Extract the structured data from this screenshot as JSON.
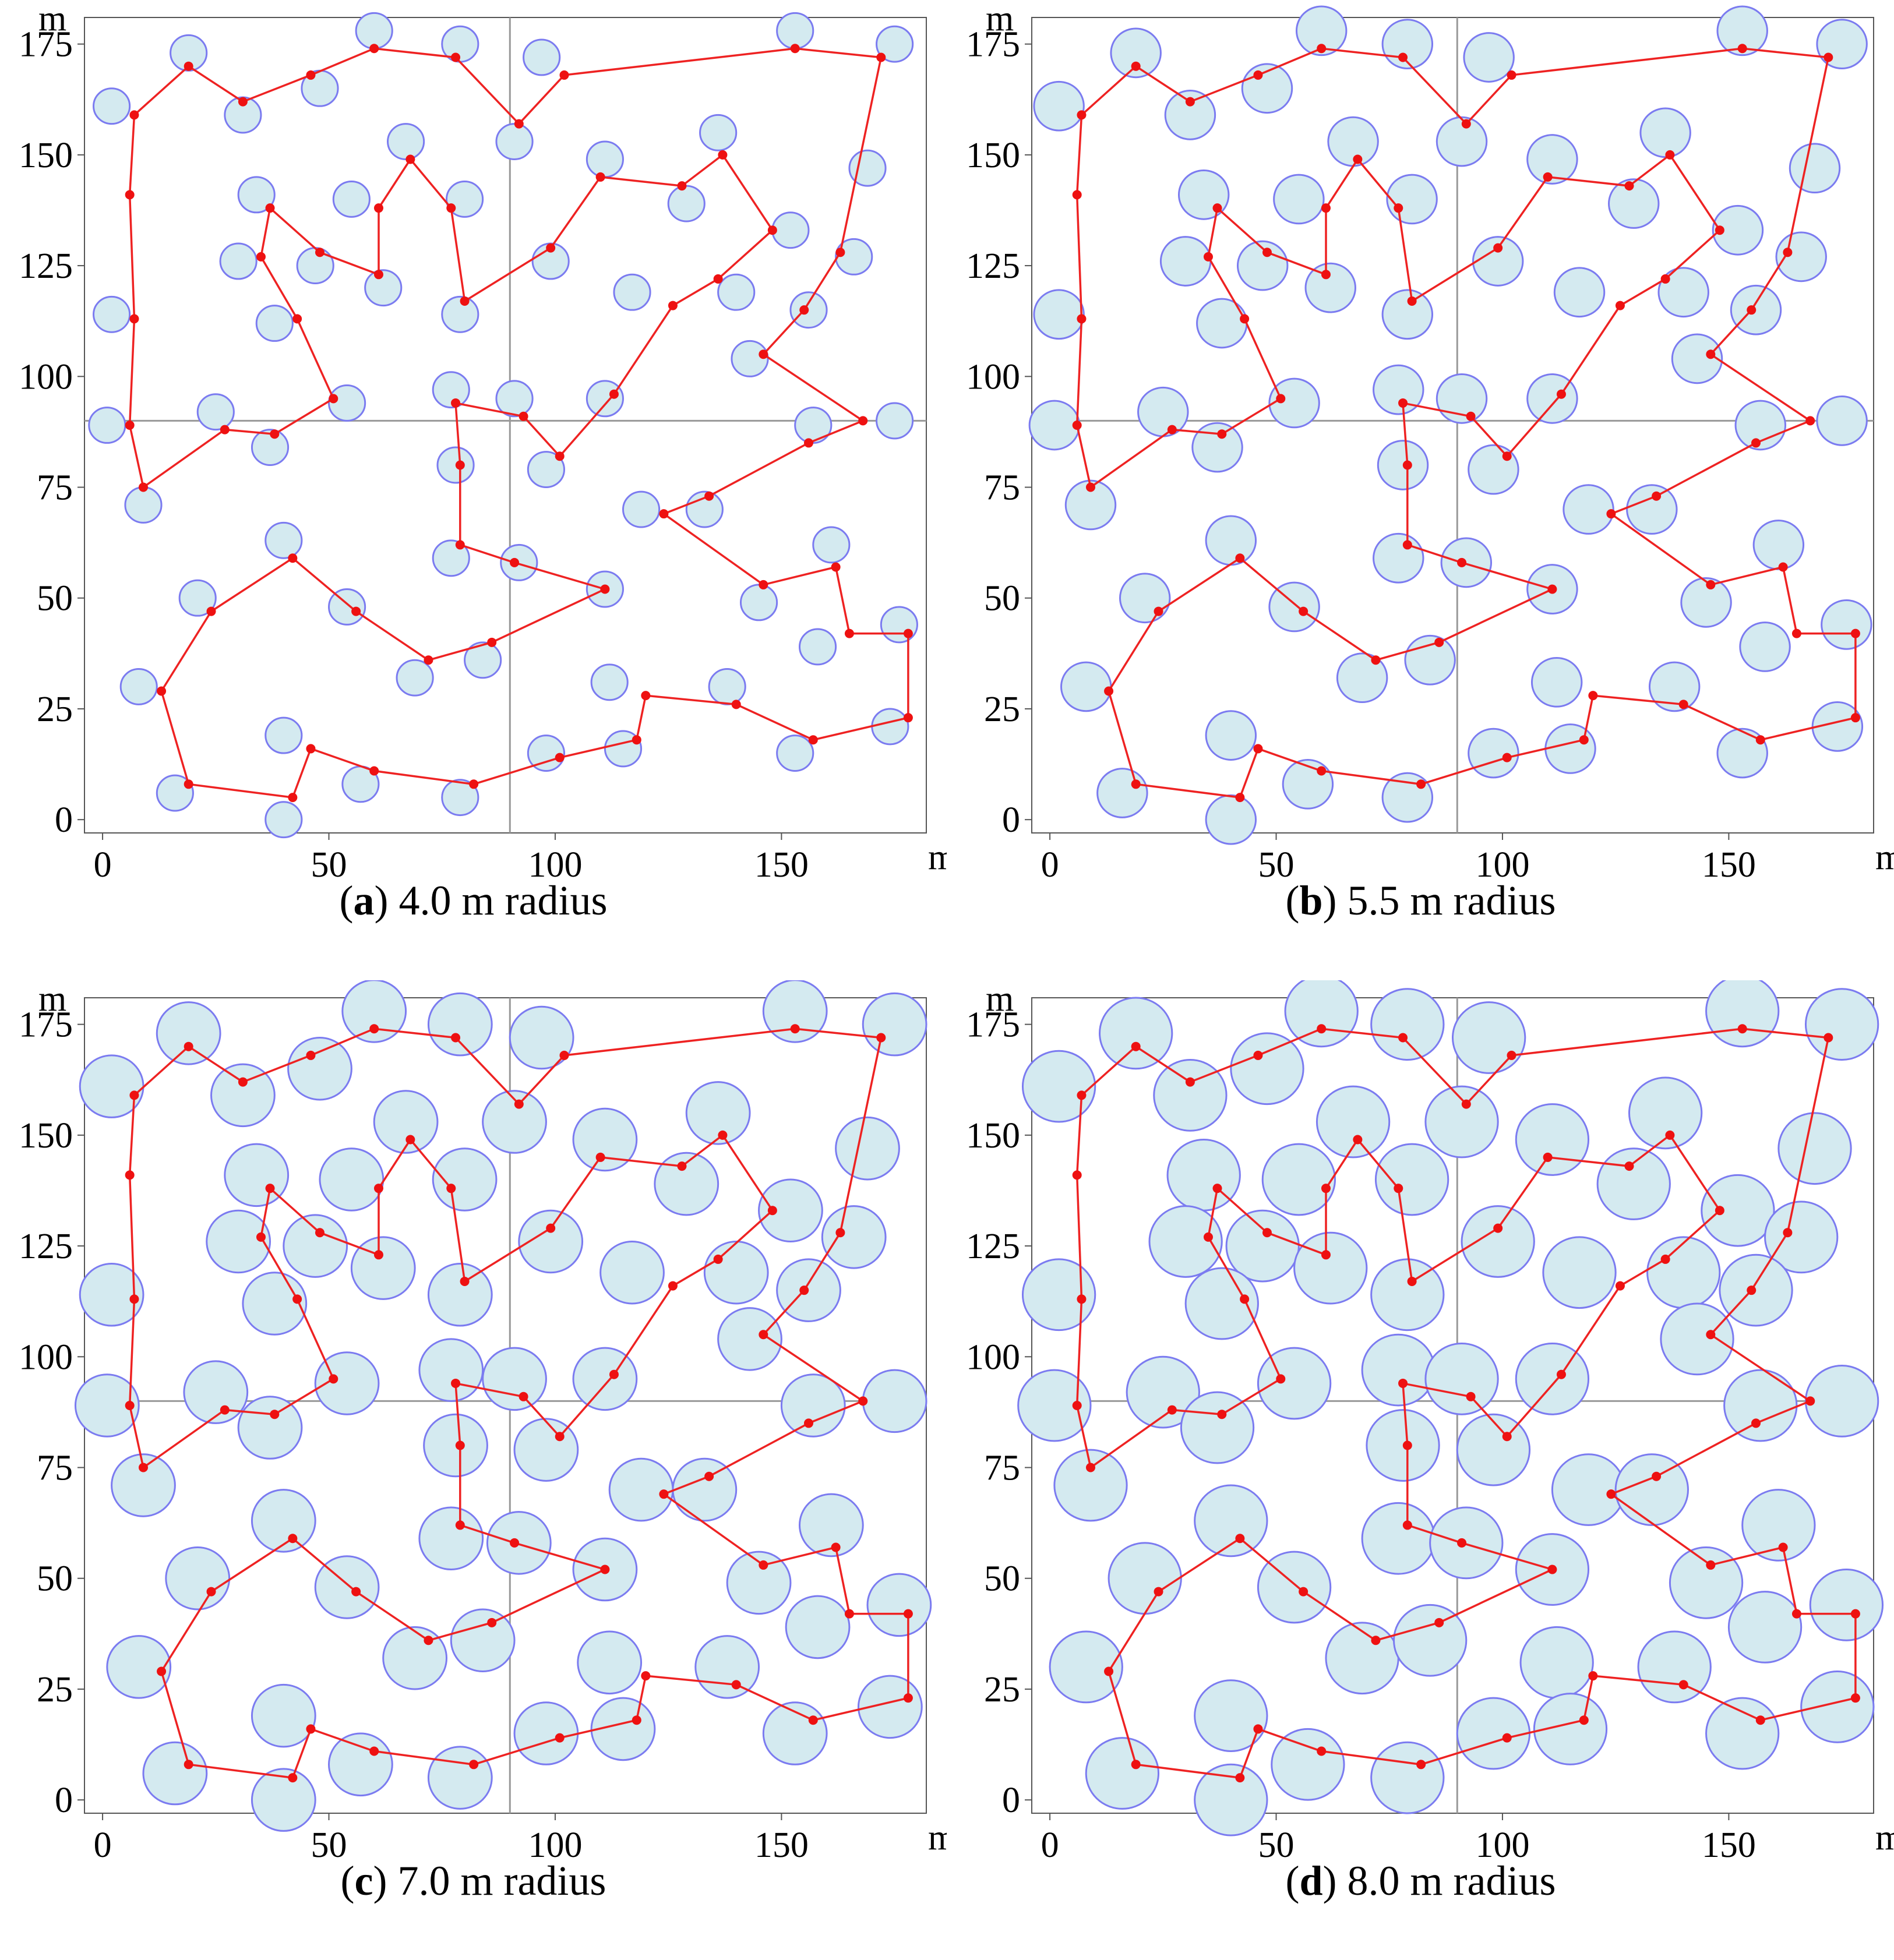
{
  "units": {
    "x": "m",
    "y": "m"
  },
  "panels": [
    {
      "id": "a",
      "label": "a",
      "caption": "4.0 m radius",
      "radius": 4.0
    },
    {
      "id": "b",
      "label": "b",
      "caption": "5.5 m radius",
      "radius": 5.5
    },
    {
      "id": "c",
      "label": "c",
      "caption": "7.0 m radius",
      "radius": 7.0
    },
    {
      "id": "d",
      "label": "d",
      "caption": "8.0 m radius",
      "radius": 8.0
    }
  ],
  "colors": {
    "circle_fill": "#d4eaf0",
    "circle_stroke": "#7b7bf0",
    "path": "#ee2222",
    "waypoint": "#ee1111",
    "axes": "#555555",
    "reference_lines": "#999999"
  },
  "chart_data": {
    "type": "scatter",
    "xlim": [
      -4,
      182
    ],
    "ylim": [
      -3,
      181
    ],
    "xticks": [
      0,
      50,
      100,
      150
    ],
    "yticks": [
      0,
      25,
      50,
      75,
      100,
      125,
      150,
      175
    ],
    "reference_lines": {
      "x": 90,
      "y": 90
    },
    "grid": false,
    "sensors": [
      [
        2,
        161
      ],
      [
        19,
        173
      ],
      [
        31,
        159
      ],
      [
        48,
        165
      ],
      [
        60,
        178
      ],
      [
        67,
        153
      ],
      [
        55,
        140
      ],
      [
        47,
        125
      ],
      [
        34,
        141
      ],
      [
        30,
        126
      ],
      [
        38,
        112
      ],
      [
        62,
        120
      ],
      [
        79,
        175
      ],
      [
        80,
        140
      ],
      [
        79,
        114
      ],
      [
        77,
        97
      ],
      [
        91,
        95
      ],
      [
        78,
        80
      ],
      [
        97,
        172
      ],
      [
        91,
        153
      ],
      [
        99,
        126
      ],
      [
        111,
        149
      ],
      [
        129,
        139
      ],
      [
        136,
        155
      ],
      [
        140,
        119
      ],
      [
        117,
        119
      ],
      [
        111,
        95
      ],
      [
        98,
        79
      ],
      [
        119,
        70
      ],
      [
        133,
        70
      ],
      [
        152,
        133
      ],
      [
        166,
        127
      ],
      [
        169,
        147
      ],
      [
        175,
        175
      ],
      [
        153,
        178
      ],
      [
        156,
        115
      ],
      [
        143,
        104
      ],
      [
        157,
        89
      ],
      [
        175,
        90
      ],
      [
        2,
        114
      ],
      [
        1,
        89
      ],
      [
        9,
        71
      ],
      [
        25,
        92
      ],
      [
        37,
        84
      ],
      [
        54,
        94
      ],
      [
        40,
        63
      ],
      [
        21,
        50
      ],
      [
        54,
        48
      ],
      [
        77,
        59
      ],
      [
        92,
        58
      ],
      [
        111,
        52
      ],
      [
        69,
        32
      ],
      [
        84,
        36
      ],
      [
        8,
        30
      ],
      [
        16,
        6
      ],
      [
        40,
        19
      ],
      [
        40,
        0
      ],
      [
        57,
        8
      ],
      [
        79,
        5
      ],
      [
        98,
        15
      ],
      [
        112,
        31
      ],
      [
        115,
        16
      ],
      [
        138,
        30
      ],
      [
        145,
        49
      ],
      [
        161,
        62
      ],
      [
        158,
        39
      ],
      [
        176,
        44
      ],
      [
        174,
        21
      ],
      [
        153,
        15
      ]
    ],
    "path": [
      [
        153,
        174
      ],
      [
        172,
        172
      ],
      [
        163,
        128
      ],
      [
        155,
        115
      ],
      [
        146,
        105
      ],
      [
        168,
        90
      ],
      [
        156,
        85
      ],
      [
        134,
        73
      ],
      [
        124,
        69
      ],
      [
        146,
        53
      ],
      [
        162,
        57
      ],
      [
        165,
        42
      ],
      [
        178,
        42
      ],
      [
        178,
        23
      ],
      [
        157,
        18
      ],
      [
        140,
        26
      ],
      [
        120,
        28
      ],
      [
        118,
        18
      ],
      [
        101,
        14
      ],
      [
        82,
        8
      ],
      [
        60,
        11
      ],
      [
        46,
        16
      ],
      [
        42,
        5
      ],
      [
        19,
        8
      ],
      [
        13,
        29
      ],
      [
        24,
        47
      ],
      [
        42,
        59
      ],
      [
        56,
        47
      ],
      [
        72,
        36
      ],
      [
        86,
        40
      ],
      [
        111,
        52
      ],
      [
        91,
        58
      ],
      [
        79,
        62
      ],
      [
        79,
        80
      ],
      [
        78,
        94
      ],
      [
        93,
        91
      ],
      [
        101,
        82
      ],
      [
        113,
        96
      ],
      [
        126,
        116
      ],
      [
        136,
        122
      ],
      [
        148,
        133
      ],
      [
        137,
        150
      ],
      [
        128,
        143
      ],
      [
        110,
        145
      ],
      [
        99,
        129
      ],
      [
        80,
        117
      ],
      [
        77,
        138
      ],
      [
        68,
        149
      ],
      [
        61,
        138
      ],
      [
        61,
        123
      ],
      [
        48,
        128
      ],
      [
        37,
        138
      ],
      [
        35,
        127
      ],
      [
        43,
        113
      ],
      [
        51,
        95
      ],
      [
        38,
        87
      ],
      [
        27,
        88
      ],
      [
        9,
        75
      ],
      [
        6,
        89
      ],
      [
        7,
        113
      ],
      [
        6,
        141
      ],
      [
        7,
        159
      ],
      [
        19,
        170
      ],
      [
        31,
        162
      ],
      [
        46,
        168
      ],
      [
        60,
        174
      ],
      [
        78,
        172
      ],
      [
        92,
        157
      ],
      [
        102,
        168
      ],
      [
        153,
        174
      ]
    ]
  }
}
